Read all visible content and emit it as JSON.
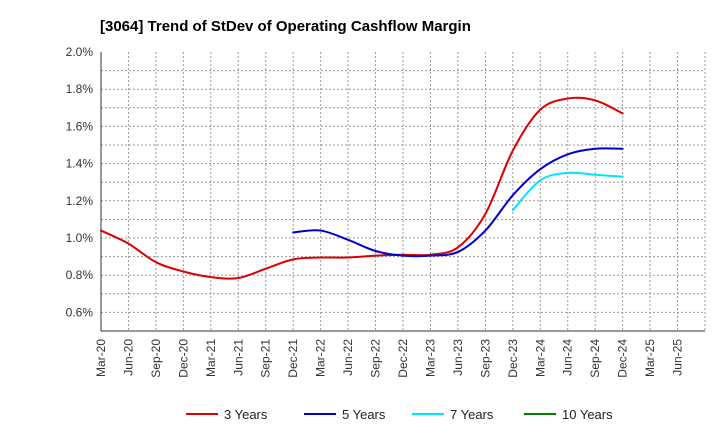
{
  "chart_data": {
    "type": "line",
    "title": "[3064]  Trend of StDev of Operating Cashflow Margin",
    "xlabel": "",
    "ylabel": "",
    "x": [
      "Mar-20",
      "Jun-20",
      "Sep-20",
      "Dec-20",
      "Mar-21",
      "Jun-21",
      "Sep-21",
      "Dec-21",
      "Mar-22",
      "Jun-22",
      "Sep-22",
      "Dec-22",
      "Mar-23",
      "Jun-23",
      "Sep-23",
      "Dec-23",
      "Mar-24",
      "Jun-24",
      "Sep-24",
      "Dec-24",
      "Mar-25",
      "Jun-25"
    ],
    "yticks": [
      "0.6%",
      "0.8%",
      "1.0%",
      "1.2%",
      "1.4%",
      "1.6%",
      "1.8%",
      "2.0%"
    ],
    "ylim": [
      0.5,
      2.0
    ],
    "grid": true,
    "legend_position": "bottom",
    "series": [
      {
        "name": "3 Years",
        "color": "#dd0000",
        "values": [
          1.04,
          0.97,
          0.87,
          0.82,
          0.79,
          0.785,
          0.835,
          0.885,
          0.895,
          0.895,
          0.905,
          0.91,
          0.91,
          0.95,
          1.13,
          1.47,
          1.69,
          1.75,
          1.74,
          1.67,
          null,
          null
        ]
      },
      {
        "name": "5 Years",
        "color": "#0000cc",
        "values": [
          null,
          null,
          null,
          null,
          null,
          null,
          null,
          1.03,
          1.04,
          0.99,
          0.93,
          0.905,
          0.905,
          0.925,
          1.04,
          1.23,
          1.37,
          1.45,
          1.48,
          1.48,
          null,
          null
        ]
      },
      {
        "name": "7 Years",
        "color": "#00e5ff",
        "values": [
          null,
          null,
          null,
          null,
          null,
          null,
          null,
          null,
          null,
          null,
          null,
          null,
          null,
          null,
          null,
          1.15,
          1.31,
          1.35,
          1.34,
          1.33,
          null,
          null
        ]
      },
      {
        "name": "10 Years",
        "color": "#008000",
        "values": [
          null,
          null,
          null,
          null,
          null,
          null,
          null,
          null,
          null,
          null,
          null,
          null,
          null,
          null,
          null,
          null,
          null,
          null,
          null,
          null,
          null,
          null
        ]
      }
    ]
  }
}
